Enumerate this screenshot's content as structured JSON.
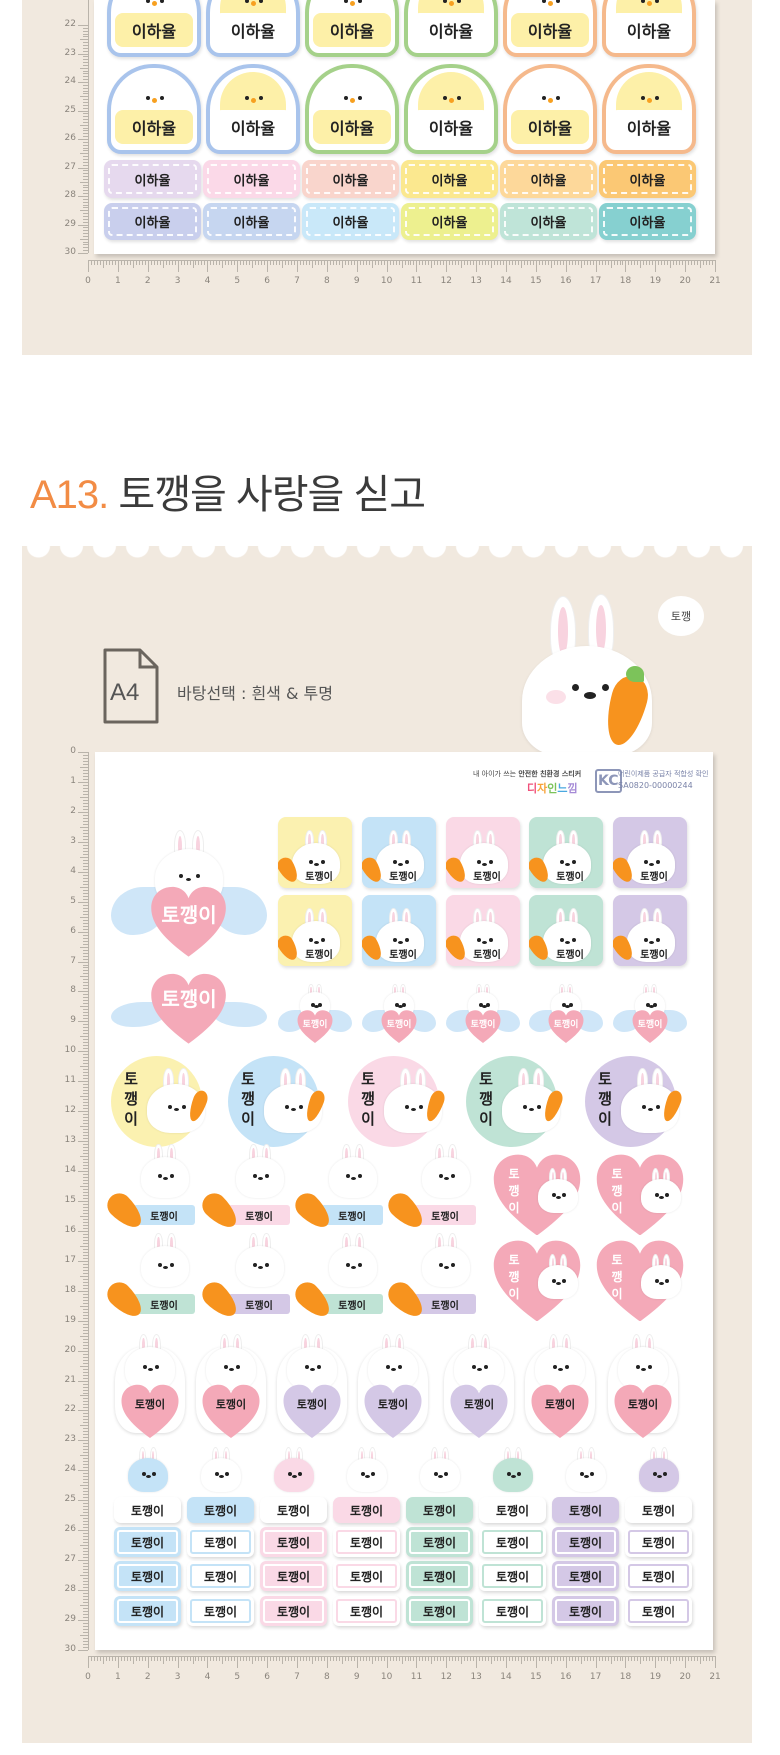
{
  "top_section": {
    "ruler_left": [
      "22",
      "23",
      "24",
      "25",
      "26",
      "27",
      "28",
      "29",
      "30"
    ],
    "ruler_bottom": [
      "0",
      "1",
      "2",
      "3",
      "4",
      "5",
      "6",
      "7",
      "8",
      "9",
      "10",
      "11",
      "12",
      "13",
      "14",
      "15",
      "16",
      "17",
      "18",
      "19",
      "20",
      "21"
    ],
    "name_label": "이하율",
    "chick_border_colors": [
      "#a9c4ec",
      "#a9c4ec",
      "#a5d18a",
      "#a5d18a",
      "#f5b98c",
      "#f5b98c"
    ],
    "chick_label_colors": [
      "#fdf0a8",
      "#ffffff",
      "#fdf0a8",
      "#ffffff",
      "#fdf0a8",
      "#ffffff"
    ],
    "rect_row1_colors": [
      "#e6d9ee",
      "#fbd9e8",
      "#f9d5cc",
      "#fbe88f",
      "#fdd89a",
      "#fbc874"
    ],
    "rect_row2_colors": [
      "#c9cfed",
      "#c6d6f0",
      "#c9e8f9",
      "#edf08f",
      "#bfe4d8",
      "#86d0d0"
    ]
  },
  "section": {
    "number": "A13.",
    "title": "토깽을 사랑을 싣고",
    "paper_size": "A4",
    "background_option": "바탕선택 : 흰색 & 투명",
    "mascot_bubble": "토깽",
    "accent_color": "#f28c45"
  },
  "sheet": {
    "tagline_prefix": "내 아이가 쓰는",
    "tagline_bold": "안전한 친환경 스티커",
    "brand": [
      "디",
      "자",
      "인",
      "느",
      "낌"
    ],
    "brand_colors": [
      "#f0507a",
      "#f7a33a",
      "#7cc35a",
      "#4aa8e0",
      "#a58ad6"
    ],
    "kc_logo": "KC",
    "kc_text": "어린이제품 공급자 적합성 확인",
    "kc_code": "SA0820-00000244",
    "name_label": "토깽이",
    "name_vertical": [
      "토",
      "깽",
      "이"
    ],
    "ruler_left": [
      "0",
      "1",
      "2",
      "3",
      "4",
      "5",
      "6",
      "7",
      "8",
      "9",
      "10",
      "11",
      "12",
      "13",
      "14",
      "15",
      "16",
      "17",
      "18",
      "19",
      "20",
      "21",
      "22",
      "23",
      "24",
      "25",
      "26",
      "27",
      "28",
      "29",
      "30"
    ],
    "ruler_bottom": [
      "0",
      "1",
      "2",
      "3",
      "4",
      "5",
      "6",
      "7",
      "8",
      "9",
      "10",
      "11",
      "12",
      "13",
      "14",
      "15",
      "16",
      "17",
      "18",
      "19",
      "20",
      "21"
    ],
    "palette": {
      "yellow": "#fbf1b0",
      "blue": "#c4e3f7",
      "pink": "#fad9e6",
      "mint": "#bfe3d5",
      "purple": "#d4c8e6",
      "heart_pink": "#f4a9b8",
      "wing_blue": "#cfe6f8",
      "carrot": "#f7931e"
    },
    "square_colors": [
      "yellow",
      "blue",
      "pink",
      "mint",
      "purple"
    ],
    "circle_colors": [
      "yellow",
      "blue",
      "pink",
      "mint",
      "purple"
    ],
    "carrot_label_colors": [
      [
        "blue",
        "pink",
        "blue",
        "pink"
      ],
      [
        "mint",
        "purple",
        "mint",
        "purple"
      ]
    ],
    "bunny_heart_colors": [
      "heart_pink",
      "heart_pink",
      "purple",
      "purple",
      "purple",
      "heart_pink",
      "heart_pink"
    ],
    "bottom_bunny_colors": [
      "blue",
      "white",
      "pink",
      "white",
      "white",
      "mint",
      "white",
      "purple"
    ],
    "bottom_row1_labels": [
      "white",
      "blue",
      "white",
      "pink",
      "mint",
      "white",
      "purple",
      "white"
    ],
    "bottom_grid_labels": [
      "blue",
      "white-blue",
      "pink",
      "white-pink",
      "mint",
      "white-mint",
      "purple",
      "white-purple"
    ]
  }
}
